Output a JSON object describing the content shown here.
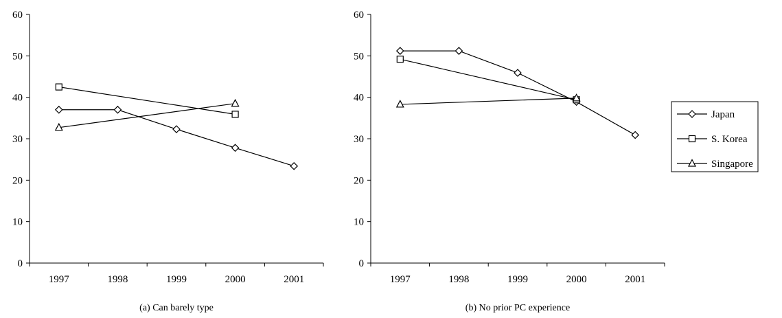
{
  "chart_data": [
    {
      "type": "line",
      "title": "",
      "caption": "(a) Can barely type",
      "xlabel": "",
      "ylabel": "",
      "x": [
        "1997",
        "1998",
        "1999",
        "2000",
        "2001"
      ],
      "ylim": [
        0,
        60
      ],
      "yticks": [
        "0",
        "10",
        "20",
        "30",
        "40",
        "50",
        "60"
      ],
      "grid": false,
      "series": [
        {
          "name": "Japan",
          "marker": "diamond",
          "values": [
            37,
            37,
            32.3,
            27.8,
            23.4
          ]
        },
        {
          "name": "S. Korea",
          "marker": "square",
          "values": [
            42.5,
            null,
            null,
            35.9,
            null
          ]
        },
        {
          "name": "Singapore",
          "marker": "triangle",
          "values": [
            32.7,
            null,
            null,
            38.5,
            null
          ]
        }
      ]
    },
    {
      "type": "line",
      "title": "",
      "caption": "(b) No prior PC experience",
      "xlabel": "",
      "ylabel": "",
      "x": [
        "1997",
        "1998",
        "1999",
        "2000",
        "2001"
      ],
      "ylim": [
        0,
        60
      ],
      "yticks": [
        "0",
        "10",
        "20",
        "30",
        "40",
        "50",
        "60"
      ],
      "grid": false,
      "series": [
        {
          "name": "Japan",
          "marker": "diamond",
          "values": [
            51.2,
            51.2,
            45.9,
            38.9,
            30.9
          ]
        },
        {
          "name": "S. Korea",
          "marker": "square",
          "values": [
            49.2,
            null,
            null,
            39.4,
            null
          ]
        },
        {
          "name": "Singapore",
          "marker": "triangle",
          "values": [
            38.3,
            null,
            null,
            39.8,
            null
          ]
        }
      ]
    }
  ],
  "legend": {
    "placement": "right",
    "items": [
      {
        "label": "Japan",
        "marker": "diamond"
      },
      {
        "label": "S. Korea",
        "marker": "square"
      },
      {
        "label": "Singapore",
        "marker": "triangle"
      }
    ]
  },
  "colors": {
    "line": "#000000",
    "marker_fill": "#ffffff",
    "background": "#ffffff"
  }
}
